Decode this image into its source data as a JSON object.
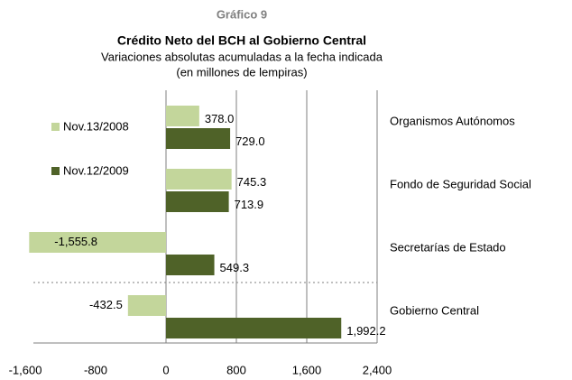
{
  "chart_data": {
    "type": "hbar",
    "caption": "Gráfico 9",
    "title": "Crédito Neto del BCH al Gobierno Central",
    "subtitle": "Variaciones absolutas acumuladas a la fecha indicada",
    "unit_note": "(en millones de lempiras)",
    "categories": [
      "Organismos Autónomos",
      "Fondo de Seguridad Social",
      "Secretarías de Estado",
      "Gobierno Central"
    ],
    "series": [
      {
        "name": "Nov.13/2008",
        "color": "#c3d69b",
        "values": [
          378.0,
          745.3,
          -1555.8,
          -432.5
        ],
        "value_labels": [
          "378.0",
          "745.3",
          "-1,555.8",
          "-432.5"
        ]
      },
      {
        "name": "Nov.12/2009",
        "color": "#4f6228",
        "values": [
          729.0,
          713.9,
          549.3,
          1992.2
        ],
        "value_labels": [
          "729.0",
          "713.9",
          "549.3",
          "1,992.2"
        ]
      }
    ],
    "xlim": [
      -1600,
      2400
    ],
    "xticks": [
      {
        "value": -1600,
        "label": "-1,600"
      },
      -800,
      0,
      800,
      {
        "value": 1600,
        "label": "1,600"
      },
      {
        "value": 2400,
        "label": "2,400"
      }
    ],
    "legend": "upper left"
  }
}
